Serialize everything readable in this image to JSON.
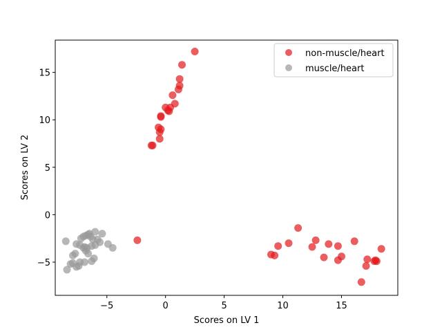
{
  "chart_data": {
    "type": "scatter",
    "title": "",
    "xlabel": "Scores on LV 1",
    "ylabel": "Scores on LV 2",
    "xlim": [
      -9.4,
      19.8
    ],
    "ylim": [
      -8.5,
      18.4
    ],
    "xticks": [
      -5,
      0,
      5,
      10,
      15
    ],
    "yticks": [
      -5,
      0,
      5,
      10,
      15
    ],
    "grid": false,
    "legend_position": "top-right",
    "series": [
      {
        "name": "non-muscle/heart",
        "color": "#e31a1c",
        "points": [
          [
            2.5,
            17.2
          ],
          [
            1.4,
            15.8
          ],
          [
            1.2,
            14.3
          ],
          [
            1.2,
            13.6
          ],
          [
            1.1,
            13.2
          ],
          [
            0.6,
            12.6
          ],
          [
            0.8,
            11.7
          ],
          [
            0.0,
            11.3
          ],
          [
            0.4,
            11.3
          ],
          [
            0.2,
            11.0
          ],
          [
            0.3,
            10.9
          ],
          [
            -0.4,
            10.4
          ],
          [
            -0.4,
            10.3
          ],
          [
            -0.6,
            9.2
          ],
          [
            -0.4,
            9.0
          ],
          [
            -0.5,
            8.7
          ],
          [
            -0.5,
            8.0
          ],
          [
            -1.1,
            7.3
          ],
          [
            -1.2,
            7.3
          ],
          [
            -2.4,
            -2.7
          ],
          [
            11.3,
            -1.4
          ],
          [
            12.8,
            -2.7
          ],
          [
            16.1,
            -2.8
          ],
          [
            13.9,
            -3.1
          ],
          [
            10.5,
            -3.0
          ],
          [
            9.6,
            -3.3
          ],
          [
            12.5,
            -3.4
          ],
          [
            14.7,
            -3.3
          ],
          [
            18.4,
            -3.6
          ],
          [
            9.0,
            -4.2
          ],
          [
            9.3,
            -4.3
          ],
          [
            13.5,
            -4.5
          ],
          [
            15.0,
            -4.4
          ],
          [
            17.2,
            -4.7
          ],
          [
            17.9,
            -4.8
          ],
          [
            18.0,
            -4.9
          ],
          [
            14.7,
            -4.8
          ],
          [
            17.8,
            -4.9
          ],
          [
            17.1,
            -5.4
          ],
          [
            16.7,
            -7.1
          ]
        ]
      },
      {
        "name": "muscle/heart",
        "color": "#999999",
        "points": [
          [
            -8.5,
            -2.8
          ],
          [
            -8.4,
            -5.8
          ],
          [
            -8.1,
            -5.2
          ],
          [
            -7.9,
            -4.3
          ],
          [
            -7.9,
            -5.1
          ],
          [
            -7.7,
            -4.1
          ],
          [
            -7.6,
            -3.1
          ],
          [
            -7.6,
            -5.5
          ],
          [
            -7.4,
            -5.4
          ],
          [
            -7.3,
            -3.2
          ],
          [
            -7.3,
            -5.0
          ],
          [
            -7.2,
            -2.5
          ],
          [
            -7.0,
            -3.5
          ],
          [
            -7.0,
            -2.3
          ],
          [
            -6.9,
            -3.4
          ],
          [
            -6.9,
            -5.0
          ],
          [
            -6.8,
            -3.8
          ],
          [
            -6.8,
            -2.2
          ],
          [
            -6.7,
            -3.5
          ],
          [
            -6.6,
            -2.1
          ],
          [
            -6.6,
            -4.1
          ],
          [
            -6.5,
            -2.0
          ],
          [
            -6.4,
            -2.3
          ],
          [
            -6.3,
            -3.3
          ],
          [
            -6.3,
            -4.9
          ],
          [
            -6.2,
            -2.6
          ],
          [
            -6.1,
            -4.6
          ],
          [
            -6.0,
            -1.8
          ],
          [
            -6.0,
            -3.2
          ],
          [
            -5.8,
            -2.6
          ],
          [
            -5.6,
            -2.9
          ],
          [
            -5.4,
            -2.0
          ],
          [
            -4.9,
            -3.1
          ],
          [
            -4.5,
            -3.5
          ]
        ]
      }
    ]
  }
}
